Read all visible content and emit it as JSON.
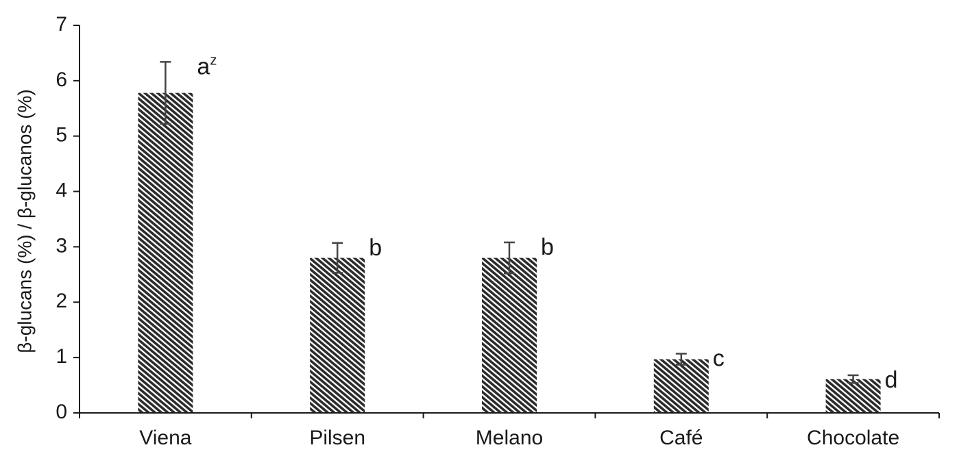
{
  "chart_data": {
    "type": "bar",
    "ylabel": "β-glucans (%) / β-glucanos (%)",
    "xlabel": "",
    "ylim": [
      0,
      7
    ],
    "yticks": [
      0,
      1,
      2,
      3,
      4,
      5,
      6,
      7
    ],
    "categories": [
      "Viena",
      "Pilsen",
      "Melano",
      "Café",
      "Chocolate"
    ],
    "values": [
      5.78,
      2.8,
      2.8,
      0.97,
      0.61
    ],
    "error": [
      0.56,
      0.27,
      0.28,
      0.1,
      0.07
    ],
    "significance": [
      {
        "letter": "a",
        "superscript": "z"
      },
      {
        "letter": "b",
        "superscript": ""
      },
      {
        "letter": "b",
        "superscript": ""
      },
      {
        "letter": "c",
        "superscript": ""
      },
      {
        "letter": "d",
        "superscript": ""
      }
    ],
    "grid": false,
    "bar_pattern": "diagonal-hatch",
    "colors": {
      "bar_dark": "#2b2b2b",
      "bar_light": "#ffffff",
      "error_bar": "#444444",
      "axis": "#1a1a1a"
    }
  }
}
